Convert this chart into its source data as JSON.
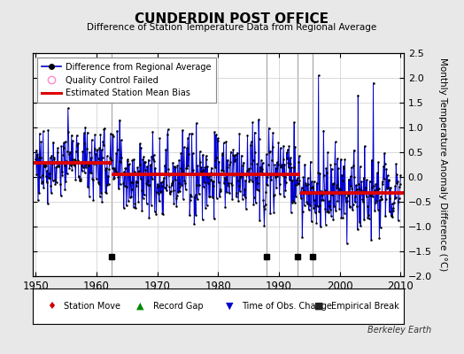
{
  "title": "CUNDERDIN POST OFFICE",
  "subtitle": "Difference of Station Temperature Data from Regional Average",
  "ylabel": "Monthly Temperature Anomaly Difference (°C)",
  "xlabel_ticks": [
    1950,
    1960,
    1970,
    1980,
    1990,
    2000,
    2010
  ],
  "ylim": [
    -2.0,
    2.5
  ],
  "yticks": [
    -2.0,
    -1.5,
    -1.0,
    -0.5,
    0.0,
    0.5,
    1.0,
    1.5,
    2.0,
    2.5
  ],
  "xlim": [
    1949.5,
    2010.5
  ],
  "background_color": "#e8e8e8",
  "plot_bg_color": "#ffffff",
  "line_color": "#0000cc",
  "marker_color": "#000000",
  "bias_color": "#dd0000",
  "watermark": "Berkeley Earth",
  "segment_biases": [
    {
      "start": 1949.5,
      "end": 1962.5,
      "bias": 0.28
    },
    {
      "start": 1962.5,
      "end": 1993.5,
      "bias": 0.05
    },
    {
      "start": 1993.5,
      "end": 2010.5,
      "bias": -0.32
    }
  ],
  "vertical_line_years": [
    1962.5,
    1988.0,
    1993.0,
    1995.5
  ],
  "empirical_break_years": [
    1962.5,
    1988.0,
    1993.0,
    1995.5
  ],
  "random_seed": 77,
  "years_start": 1950,
  "years_end": 2010
}
